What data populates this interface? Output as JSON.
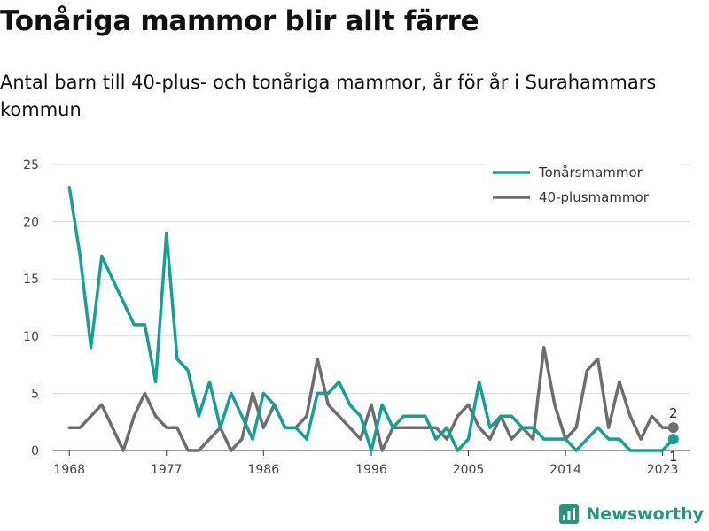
{
  "title": "Tonåriga mammor blir allt färre",
  "subtitle": "Antal barn till 40-plus- och tonåriga mammor, år för år i Surahammars kommun",
  "brand": "Newsworthy",
  "colors": {
    "teen": "#16a094",
    "forty": "#6d6d6f",
    "grid": "#d9d9d9",
    "axis": "#333333"
  },
  "chart_data": {
    "type": "line",
    "title": "Tonåriga mammor blir allt färre",
    "subtitle": "Antal barn till 40-plus- och tonåriga mammor, år för år i Surahammars kommun",
    "xlabel": "",
    "ylabel": "",
    "xlim": [
      1966.5,
      2025.5
    ],
    "ylim": [
      0,
      25
    ],
    "x_ticks": [
      1968,
      1977,
      1986,
      1996,
      2005,
      2014,
      2023
    ],
    "y_ticks": [
      0,
      5,
      10,
      15,
      20,
      25
    ],
    "grid": "horizontal",
    "legend_position": "top-right",
    "x": [
      1968,
      1969,
      1970,
      1971,
      1972,
      1973,
      1974,
      1975,
      1976,
      1977,
      1978,
      1979,
      1980,
      1981,
      1982,
      1983,
      1984,
      1985,
      1986,
      1987,
      1988,
      1989,
      1990,
      1991,
      1992,
      1993,
      1994,
      1995,
      1996,
      1997,
      1998,
      1999,
      2000,
      2001,
      2002,
      2003,
      2004,
      2005,
      2006,
      2007,
      2008,
      2009,
      2010,
      2011,
      2012,
      2013,
      2014,
      2015,
      2016,
      2017,
      2018,
      2019,
      2020,
      2021,
      2022,
      2023,
      2024
    ],
    "series": [
      {
        "name": "Tonårsmammor",
        "key": "teen",
        "values": [
          23,
          17,
          9,
          17,
          15,
          13,
          11,
          11,
          6,
          19,
          8,
          7,
          3,
          6,
          2,
          5,
          3,
          1,
          5,
          4,
          2,
          2,
          1,
          5,
          5,
          6,
          4,
          3,
          0,
          4,
          2,
          3,
          3,
          3,
          1,
          2,
          0,
          1,
          6,
          2,
          3,
          3,
          2,
          2,
          1,
          1,
          1,
          0,
          1,
          2,
          1,
          1,
          0,
          0,
          0,
          0,
          1
        ],
        "end_label": "1"
      },
      {
        "name": "40-plusmammor",
        "key": "forty",
        "values": [
          2,
          2,
          3,
          4,
          2,
          0,
          3,
          5,
          3,
          2,
          2,
          0,
          0,
          1,
          2,
          0,
          1,
          5,
          2,
          4,
          2,
          2,
          3,
          8,
          4,
          3,
          2,
          1,
          4,
          0,
          2,
          2,
          2,
          2,
          2,
          1,
          3,
          4,
          2,
          1,
          3,
          1,
          2,
          1,
          9,
          4,
          1,
          2,
          7,
          8,
          2,
          6,
          3,
          1,
          3,
          2,
          2
        ],
        "end_label": "2"
      }
    ]
  }
}
